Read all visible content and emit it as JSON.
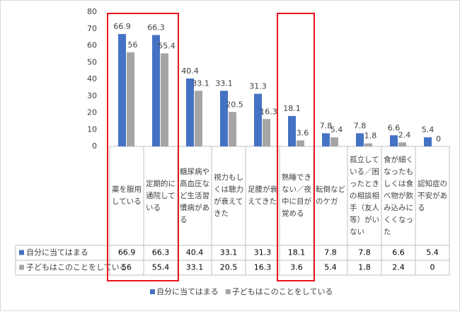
{
  "chart_data": {
    "type": "bar",
    "categories": [
      "薬を服用している",
      "定期的に通院している",
      "糖尿病や高血圧など生活習慣病がある",
      "視力もしくは聴力が衰えてきた",
      "足腰が衰えてきた",
      "熟睡できない／夜中に目が覚める",
      "転倒などのケガ",
      "孤立している／困ったときの相談相手（友人等）がいない",
      "食が細くなったもしくは食べ物が飲み込みにくくなった",
      "認知症の不安がある"
    ],
    "series": [
      {
        "name": "自分に当てはまる",
        "color": "#4472c4",
        "values": [
          66.9,
          66.3,
          40.4,
          33.1,
          31.3,
          18.1,
          7.8,
          7.8,
          6.6,
          5.4
        ]
      },
      {
        "name": "子どもはこのことをしている",
        "color": "#a5a5a5",
        "values": [
          56,
          55.4,
          33.1,
          20.5,
          16.3,
          3.6,
          5.4,
          1.8,
          2.4,
          0
        ]
      }
    ],
    "ylim": [
      0,
      80
    ],
    "yticks": [
      0,
      10,
      20,
      30,
      40,
      50,
      60,
      70,
      80
    ],
    "grid": false,
    "legend": "bottom"
  }
}
